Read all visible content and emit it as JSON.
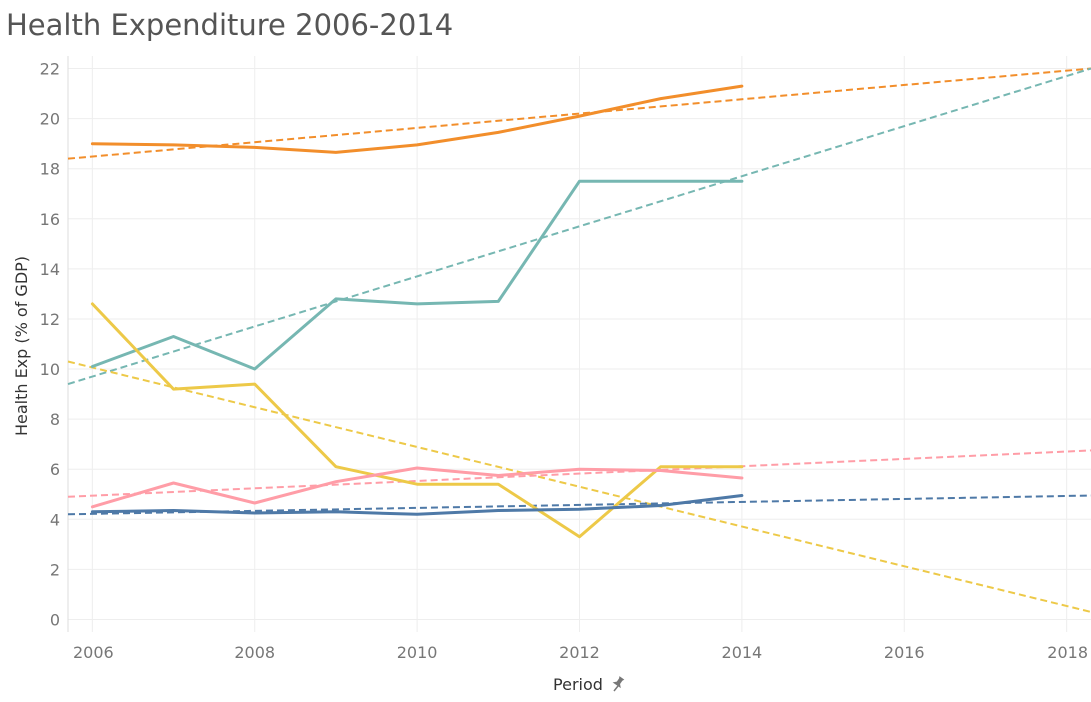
{
  "chart_data": {
    "type": "line",
    "title": "Health Expenditure 2006-2014",
    "xlabel": "Period",
    "ylabel": "Health Exp (% of GDP)",
    "x_ticks": [
      "2006",
      "2008",
      "2010",
      "2012",
      "2014",
      "2016",
      "2018"
    ],
    "y_ticks": [
      "0",
      "2",
      "4",
      "6",
      "8",
      "10",
      "12",
      "14",
      "16",
      "18",
      "20",
      "22"
    ],
    "xlim": [
      2005.7,
      2018.3
    ],
    "ylim": [
      -0.5,
      22.5
    ],
    "grid": true,
    "pin_icon": "pin-icon",
    "x": [
      2006,
      2007,
      2008,
      2009,
      2010,
      2011,
      2012,
      2013,
      2014
    ],
    "series": [
      {
        "color": "#f28e2b",
        "values": [
          19.0,
          18.95,
          18.85,
          18.65,
          18.95,
          19.45,
          20.1,
          20.8,
          21.3
        ]
      },
      {
        "color": "#76b7b2",
        "values": [
          10.1,
          11.3,
          10.0,
          12.8,
          12.6,
          12.7,
          17.5,
          17.5,
          17.5
        ]
      },
      {
        "color": "#edc948",
        "values": [
          12.6,
          9.2,
          9.4,
          6.1,
          5.4,
          5.4,
          3.3,
          6.1,
          6.1
        ]
      },
      {
        "color": "#ff9da7",
        "values": [
          4.5,
          5.45,
          4.65,
          5.5,
          6.05,
          5.75,
          6.0,
          5.95,
          5.65
        ]
      },
      {
        "color": "#4e79a7",
        "values": [
          4.3,
          4.35,
          4.25,
          4.3,
          4.2,
          4.35,
          4.4,
          4.55,
          4.95
        ]
      }
    ],
    "trend_lines": [
      {
        "color": "#f28e2b",
        "start": [
          2005.7,
          18.4
        ],
        "end": [
          2018.3,
          22.0
        ]
      },
      {
        "color": "#76b7b2",
        "start": [
          2005.7,
          9.4
        ],
        "end": [
          2018.3,
          22.0
        ]
      },
      {
        "color": "#edc948",
        "start": [
          2005.7,
          10.3
        ],
        "end": [
          2018.3,
          0.3
        ]
      },
      {
        "color": "#ff9da7",
        "start": [
          2005.7,
          4.9
        ],
        "end": [
          2018.3,
          6.75
        ]
      },
      {
        "color": "#4e79a7",
        "start": [
          2005.7,
          4.2
        ],
        "end": [
          2018.3,
          4.95
        ]
      }
    ]
  }
}
